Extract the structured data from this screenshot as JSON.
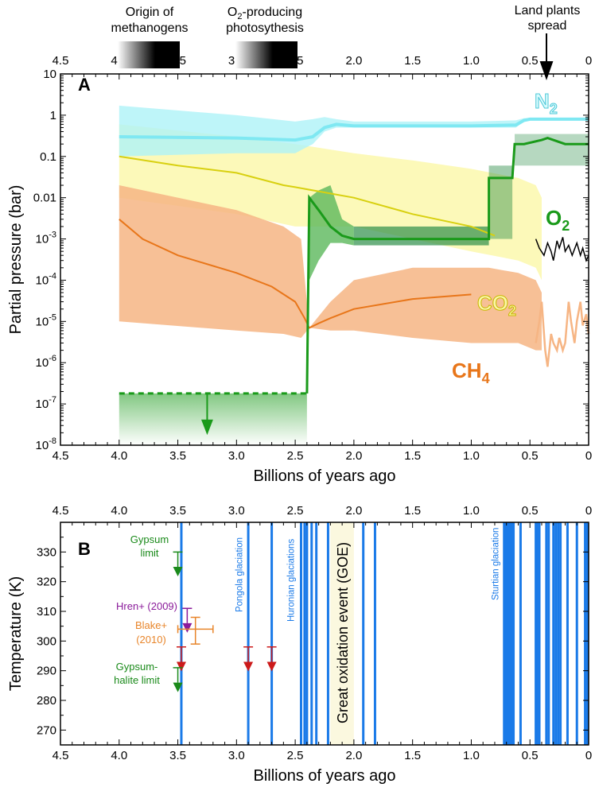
{
  "chart_data": [
    {
      "type": "area",
      "panel": "A",
      "ylabel": "Partial pressure (bar)",
      "xlabel": "Billions of years ago",
      "yscale": "log",
      "ylim": [
        1e-08,
        10
      ],
      "xlim": [
        4.5,
        0
      ],
      "xticks": [
        "4.5",
        "4.0",
        "3.5",
        "3.0",
        "2.5",
        "2.0",
        "1.5",
        "1.0",
        "0.5",
        "0"
      ],
      "yticks": [
        "10",
        "1",
        "0.1",
        "0.01",
        "10^-3",
        "10^-4",
        "10^-5",
        "10^-6",
        "10^-7",
        "10^-8"
      ],
      "annotations": {
        "origin_methanogens": "Origin of methanogens",
        "o2_photosynthesis_a": "O",
        "o2_photosynthesis_sub": "2",
        "o2_photosynthesis_b": "-producing",
        "o2_photosynthesis_c": "photosythesis",
        "land_plants": "Land plants spread",
        "panel_label": "A"
      },
      "series": [
        {
          "name": "N2",
          "label": "N",
          "sub": "2",
          "color": "#7fe8f2",
          "band": "#aef3f7",
          "x": [
            4.0,
            3.0,
            2.5,
            2.35,
            2.25,
            2.15,
            2.0,
            1.0,
            0.62,
            0.55,
            0.5,
            0
          ],
          "values": [
            0.3,
            0.28,
            0.25,
            0.3,
            0.5,
            0.6,
            0.55,
            0.55,
            0.58,
            0.75,
            0.8,
            0.8
          ],
          "upper": [
            1.7,
            1.0,
            0.7,
            0.8,
            0.9,
            0.8,
            0.7,
            0.7,
            0.75,
            0.85,
            0.85,
            0.85
          ],
          "lower": [
            0.1,
            0.12,
            0.12,
            0.2,
            0.4,
            0.5,
            0.5,
            0.5,
            0.5,
            0.7,
            0.75,
            0.75
          ]
        },
        {
          "name": "CO2",
          "label": "CO",
          "sub": "2",
          "color": "#d8d010",
          "band": "#fbf7a8",
          "x": [
            4.0,
            3.5,
            3.0,
            2.6,
            2.5,
            2.0,
            1.5,
            1.0,
            0.8
          ],
          "values": [
            0.1,
            0.06,
            0.04,
            0.02,
            0.018,
            0.01,
            0.004,
            0.002,
            0.0012
          ],
          "band_x": [
            4.0,
            3.0,
            2.5,
            2.0,
            1.5,
            1.0,
            0.6,
            0.45,
            0.4
          ],
          "upper": [
            0.6,
            0.3,
            0.2,
            0.12,
            0.08,
            0.05,
            0.03,
            0.02,
            0.01
          ],
          "lower": [
            0.01,
            0.004,
            0.002,
            0.002,
            0.001,
            0.0005,
            0.0003,
            0.0002,
            0.0001
          ],
          "recent_x": [
            0.45,
            0.42,
            0.38,
            0.35,
            0.32,
            0.3,
            0.27,
            0.25,
            0.22,
            0.2,
            0.17,
            0.14,
            0.1,
            0.07,
            0.05,
            0.02,
            0
          ],
          "recent": [
            0.001,
            0.0006,
            0.0004,
            0.0008,
            0.0005,
            0.0003,
            0.0009,
            0.0006,
            0.0011,
            0.0005,
            0.0007,
            0.0004,
            0.0008,
            0.0004,
            0.0006,
            0.0003,
            0.0004
          ]
        },
        {
          "name": "CH4",
          "label": "CH",
          "sub": "4",
          "color": "#e8761a",
          "band": "#f6b584",
          "x": [
            4.0,
            3.8,
            3.5,
            3.0,
            2.7,
            2.5,
            2.42,
            2.38,
            2.3,
            2.2,
            2.0,
            1.5,
            1.0
          ],
          "values": [
            0.003,
            0.001,
            0.0004,
            0.00015,
            7e-05,
            3e-05,
            1.2e-05,
            7e-06,
            9e-06,
            1.2e-05,
            2e-05,
            3.5e-05,
            4.5e-05
          ],
          "band_x": [
            4.0,
            3.0,
            2.6,
            2.45,
            2.38,
            2.2,
            2.0,
            1.5,
            1.0,
            0.85,
            0.6,
            0.45,
            0.4
          ],
          "upper": [
            0.02,
            0.005,
            0.002,
            0.001,
            7e-06,
            3e-05,
            0.0001,
            0.0002,
            0.0002,
            0.0002,
            0.00015,
            0.0001,
            5e-05
          ],
          "lower": [
            1e-05,
            6e-06,
            5e-06,
            4e-06,
            7e-06,
            6e-06,
            6e-06,
            4e-06,
            3e-06,
            3e-06,
            3e-06,
            2e-06,
            2e-06
          ],
          "recent_x": [
            0.45,
            0.42,
            0.4,
            0.37,
            0.35,
            0.32,
            0.3,
            0.27,
            0.25,
            0.22,
            0.2,
            0.17,
            0.15,
            0.12,
            0.1,
            0.07,
            0.05,
            0.02,
            0
          ],
          "recent": [
            3e-06,
            1e-05,
            3e-05,
            2e-06,
            8e-07,
            5e-06,
            3e-06,
            2e-06,
            4e-06,
            2e-06,
            3e-06,
            3e-05,
            1e-05,
            3e-06,
            1e-05,
            3e-05,
            8e-06,
            1.5e-05,
            5e-06
          ]
        },
        {
          "name": "O2",
          "label": "O",
          "sub": "2",
          "color": "#1a9a1a",
          "band": "#5bb85b",
          "x": [
            4.0,
            2.4,
            2.4,
            2.38,
            2.3,
            2.2,
            2.1,
            2.0,
            1.5,
            1.0,
            0.85,
            0.85,
            0.65,
            0.63,
            0.55,
            0.4,
            0.35,
            0.2,
            0
          ],
          "values": [
            1.8e-07,
            1.8e-07,
            1.8e-07,
            0.01,
            0.005,
            0.002,
            0.0012,
            0.001,
            0.001,
            0.001,
            0.001,
            0.03,
            0.03,
            0.2,
            0.2,
            0.25,
            0.28,
            0.2,
            0.2
          ],
          "upper_limit_arrow_x": 3.25
        }
      ]
    },
    {
      "type": "scatter",
      "panel": "B",
      "ylabel": "Temperature (K)",
      "xlabel": "Billions of years ago",
      "ylim": [
        265,
        340
      ],
      "xlim": [
        4.5,
        0
      ],
      "xticks": [
        "4.5",
        "4.0",
        "3.5",
        "3.0",
        "2.5",
        "2.0",
        "1.5",
        "1.0",
        "0.5",
        "0"
      ],
      "yticks": [
        "330",
        "320",
        "310",
        "300",
        "290",
        "280",
        "270"
      ],
      "panel_label": "B",
      "glaciations": [
        3.47,
        2.9,
        2.7,
        2.45,
        2.42,
        2.4,
        2.36,
        2.32,
        2.22,
        1.92,
        1.82,
        0.72,
        0.71,
        0.7,
        0.69,
        0.68,
        0.66,
        0.64,
        0.58,
        0.45,
        0.44,
        0.42,
        0.36,
        0.34,
        0.3,
        0.28,
        0.26,
        0.24,
        0.18,
        0.1,
        0.03,
        0.01
      ],
      "glaciation_labels": {
        "pongola": "Pongola glaciation",
        "huronian": "Huronian glaciations",
        "sturtian": "Sturtian glaciation"
      },
      "goe": {
        "label": "Great oxidation event (GOE)",
        "from": 2.2,
        "to": 2.0
      },
      "constraints": [
        {
          "label": "Gypsum limit",
          "x": 3.5,
          "from": 330,
          "to": 325,
          "color": "#1a8a1a"
        },
        {
          "label": "Hren+ (2009)",
          "x": 3.42,
          "from": 311,
          "to": 306,
          "color": "#8a1a9a"
        },
        {
          "label": "",
          "x": 3.47,
          "from": 298,
          "to": 293,
          "color": "#cc1a1a"
        },
        {
          "label": "",
          "x": 2.9,
          "from": 298,
          "to": 293,
          "color": "#cc1a1a"
        },
        {
          "label": "",
          "x": 2.7,
          "from": 298,
          "to": 293,
          "color": "#cc1a1a"
        },
        {
          "label": "Gypsum-halite limit",
          "x": 3.5,
          "from": 291,
          "to": 286,
          "color": "#1a8a1a"
        }
      ],
      "blake": {
        "label_a": "Blake+",
        "label_b": "(2010)",
        "x": 3.35,
        "y": 304,
        "xerr": [
          3.5,
          3.2
        ],
        "yerr": [
          299,
          308
        ],
        "color": "#e8852a"
      },
      "label_texts": {
        "gypsum_a": "Gypsum",
        "gypsum_b": "limit",
        "hren": "Hren+ (2009)",
        "gh_a": "Gypsum-",
        "gh_b": "halite limit"
      }
    }
  ]
}
